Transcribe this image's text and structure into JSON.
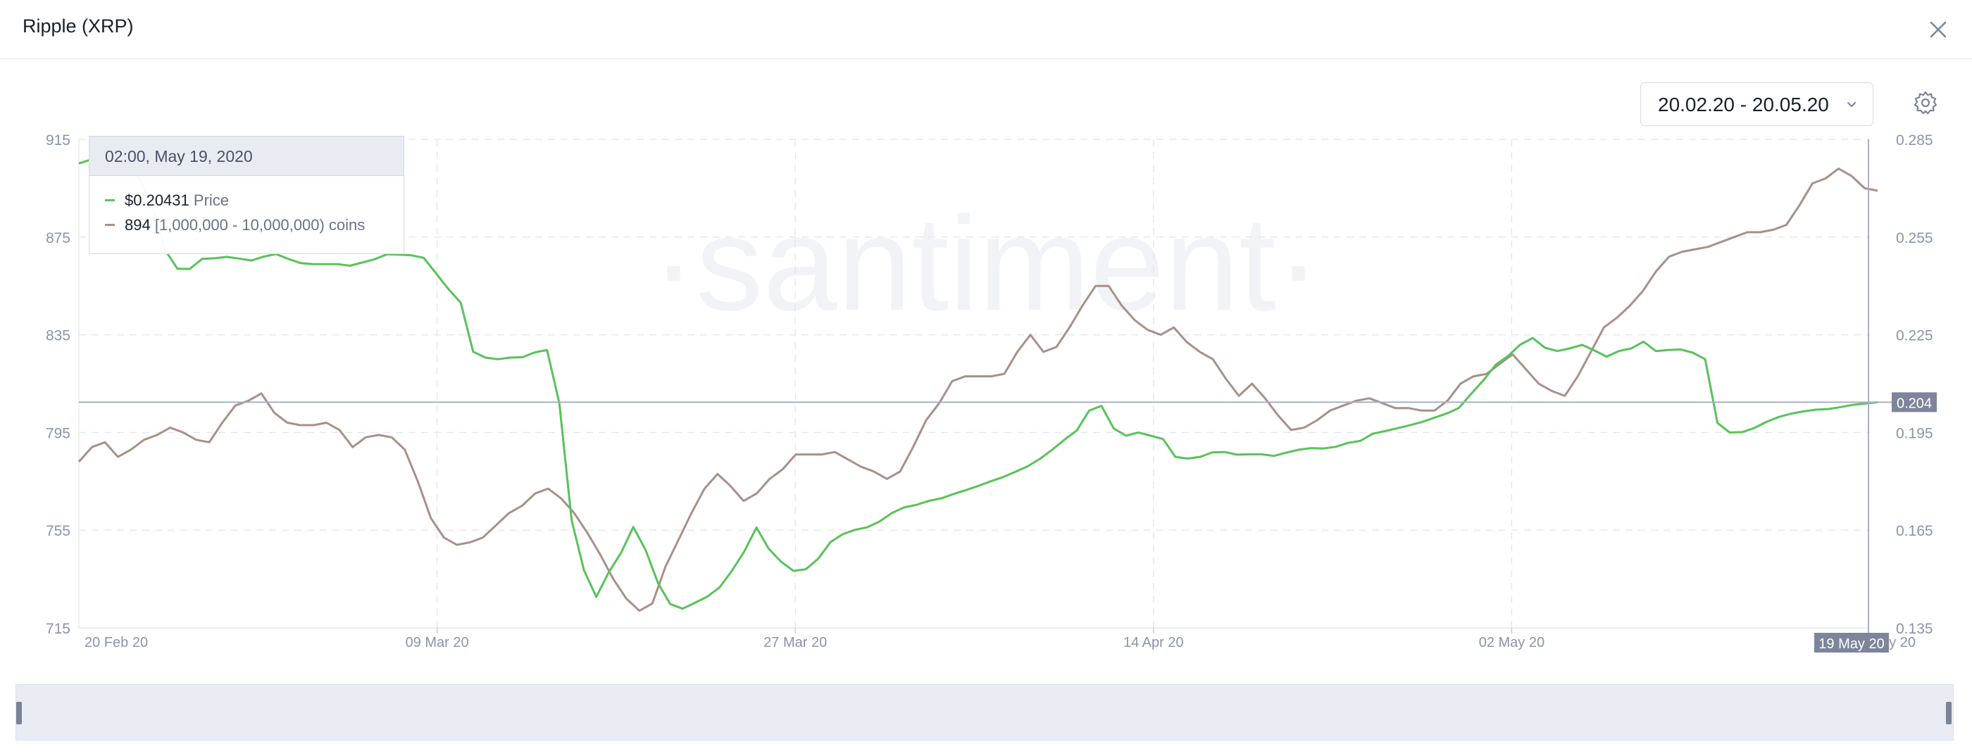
{
  "header": {
    "title": "Ripple (XRP)"
  },
  "controls": {
    "date_range": "20.02.20 - 20.05.20"
  },
  "colors": {
    "price": "#59c25a",
    "coins": "#a89088",
    "grid": "#e6e8ee",
    "axis_text": "#8a93aa",
    "crosshair": "#a8b0c6",
    "marker_bg": "#7d859a"
  },
  "icons": {
    "close": "close-icon",
    "dropdown": "chevron-down-icon",
    "settings": "gear-icon"
  },
  "watermark": "·santiment·",
  "tooltip": {
    "header": "02:00, May 19, 2020",
    "rows": [
      {
        "value": "$0.20431",
        "label": "Price"
      },
      {
        "value": "894",
        "label": "[1,000,000 - 10,000,000) coins"
      }
    ]
  },
  "chart_data": {
    "type": "line",
    "x_ticks": [
      "20 Feb 20",
      "09 Mar 20",
      "27 Mar 20",
      "14 Apr 20",
      "02 May 20",
      "20 May 20"
    ],
    "x_range": [
      "2020-02-20",
      "2020-05-20"
    ],
    "crosshair_label": "19 May 20",
    "left_axis": {
      "ticks": [
        915,
        875,
        835,
        795,
        755,
        715
      ],
      "range": [
        715,
        915
      ]
    },
    "right_axis": {
      "ticks": [
        "0.285",
        "0.255",
        "0.225",
        "0.195",
        "0.165",
        "0.135"
      ],
      "range": [
        0.135,
        0.285
      ]
    },
    "current_price_label": "0.204",
    "series": [
      {
        "name": "Price",
        "axis": "right",
        "values": [
          0.2776,
          0.2788,
          0.2785,
          0.2795,
          0.2785,
          0.2724,
          0.2638,
          0.251,
          0.2453,
          0.2452,
          0.2483,
          0.2485,
          0.2489,
          0.2484,
          0.2478,
          0.249,
          0.2498,
          0.2483,
          0.247,
          0.2467,
          0.2467,
          0.2467,
          0.2462,
          0.2472,
          0.2482,
          0.2497,
          0.2496,
          0.2494,
          0.2486,
          0.2438,
          0.239,
          0.2348,
          0.2198,
          0.218,
          0.2175,
          0.218,
          0.2181,
          0.2196,
          0.2203,
          0.204,
          0.168,
          0.1527,
          0.1445,
          0.152,
          0.158,
          0.166,
          0.1589,
          0.1488,
          0.1423,
          0.1409,
          0.1427,
          0.1446,
          0.1474,
          0.1525,
          0.1584,
          0.1658,
          0.1593,
          0.1553,
          0.1525,
          0.153,
          0.1562,
          0.1613,
          0.1638,
          0.1651,
          0.1659,
          0.1677,
          0.1703,
          0.172,
          0.1728,
          0.174,
          0.1748,
          0.1761,
          0.1773,
          0.1786,
          0.18,
          0.1813,
          0.1829,
          0.1846,
          0.1869,
          0.1897,
          0.1928,
          0.1956,
          0.2017,
          0.2032,
          0.1962,
          0.194,
          0.195,
          0.194,
          0.193,
          0.1875,
          0.187,
          0.1875,
          0.1889,
          0.189,
          0.1882,
          0.1883,
          0.1883,
          0.1878,
          0.1888,
          0.1897,
          0.1902,
          0.1901,
          0.1906,
          0.1918,
          0.1924,
          0.1946,
          0.1954,
          0.1963,
          0.1972,
          0.1982,
          0.1995,
          0.2008,
          0.2025,
          0.2068,
          0.211,
          0.2158,
          0.2185,
          0.222,
          0.224,
          0.221,
          0.22,
          0.2208,
          0.2219,
          0.2202,
          0.2183,
          0.22,
          0.2208,
          0.2229,
          0.22,
          0.2203,
          0.2205,
          0.2195,
          0.2175,
          0.1979,
          0.195,
          0.1951,
          0.1964,
          0.1983,
          0.1998,
          0.2008,
          0.2015,
          0.202,
          0.2022,
          0.2028,
          0.2035,
          0.2039,
          0.2043
        ]
      },
      {
        "name": "[1,000,000 - 10,000,000) coins",
        "axis": "left",
        "values": [
          783,
          789,
          791,
          785,
          788,
          792,
          794,
          797,
          795,
          792,
          791,
          799,
          806,
          808,
          811,
          803,
          799,
          798,
          798,
          799,
          796,
          789,
          793,
          794,
          793,
          788,
          775,
          760,
          752,
          749,
          750,
          752,
          757,
          762,
          765,
          770,
          772,
          768,
          762,
          754,
          745,
          735,
          727,
          722,
          725,
          740,
          751,
          762,
          772,
          778,
          773,
          767,
          770,
          776,
          780,
          786,
          786,
          786,
          787,
          784,
          781,
          779,
          776,
          779,
          789,
          800,
          807,
          816,
          818,
          818,
          818,
          819,
          828,
          835,
          828,
          830,
          838,
          847,
          855,
          855,
          847,
          841,
          837,
          835,
          838,
          832,
          828,
          825,
          817,
          810,
          815,
          809,
          802,
          796,
          797,
          800,
          804,
          806,
          808,
          809,
          807,
          805,
          805,
          804,
          804,
          808,
          815,
          818,
          819,
          823,
          827,
          821,
          815,
          812,
          810,
          818,
          828,
          838,
          842,
          847,
          853,
          861,
          867,
          869,
          870,
          871,
          873,
          875,
          877,
          877,
          878,
          880,
          888,
          897,
          899,
          903,
          900,
          895,
          894
        ]
      }
    ]
  }
}
